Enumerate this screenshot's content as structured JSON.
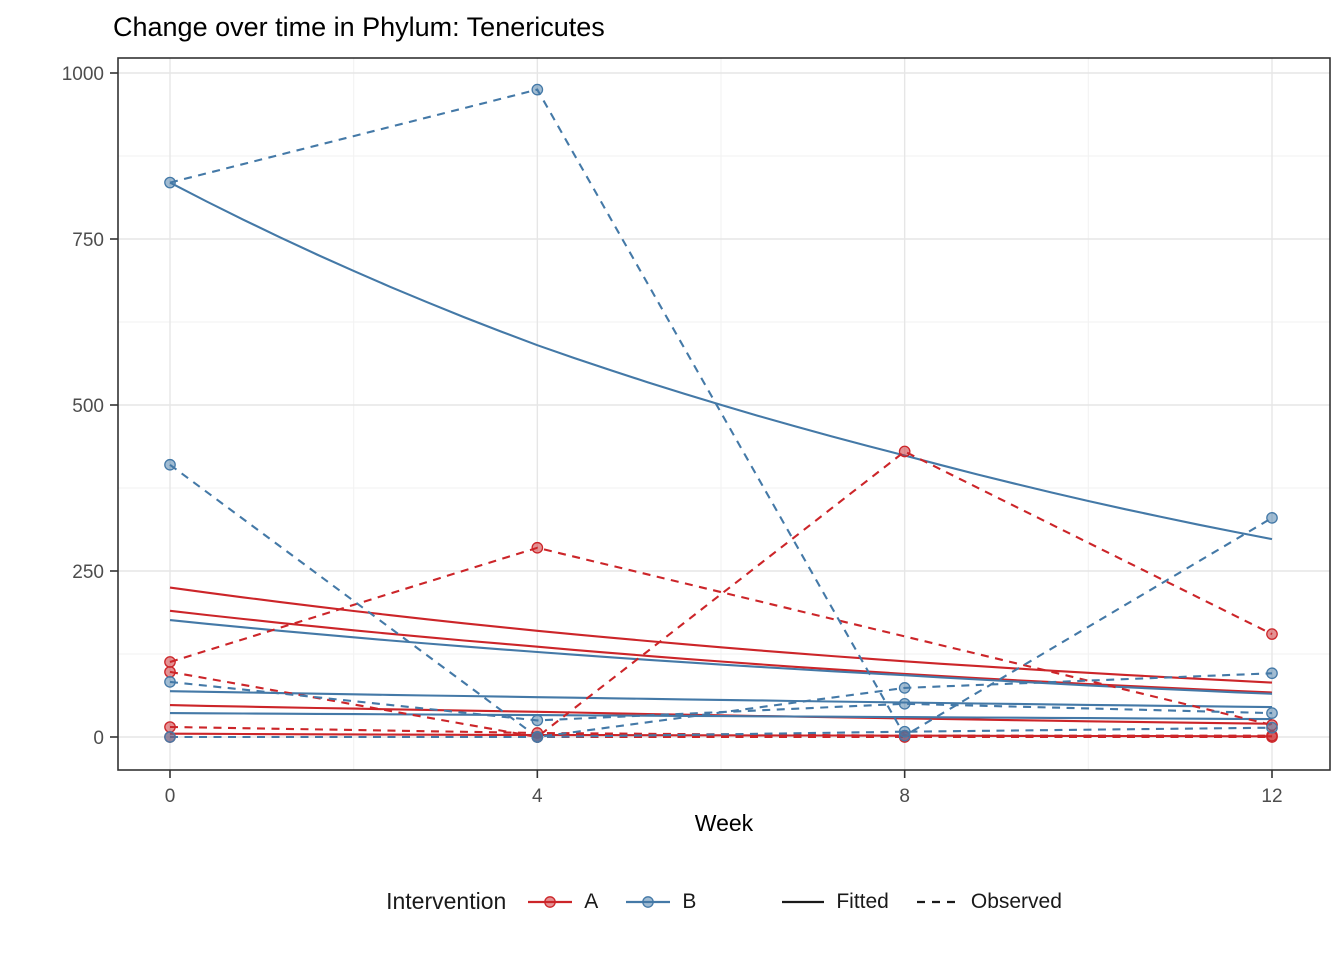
{
  "chart_data": {
    "type": "line",
    "title": "Change over time in Phylum: Tenericutes",
    "xlabel": "Week",
    "ylabel": "",
    "x": [
      0,
      4,
      8,
      12
    ],
    "xticks": [
      0,
      4,
      8,
      12
    ],
    "xticks_minor": [
      2,
      6,
      10
    ],
    "yticks": [
      0,
      250,
      500,
      750,
      1000
    ],
    "yticks_minor": [
      125,
      375,
      625,
      875
    ],
    "xlim": [
      -0.57,
      12.63
    ],
    "ylim": [
      -50,
      1023
    ],
    "grid": "on",
    "legend_position": "bottom",
    "legend": {
      "title": "Intervention",
      "groups": [
        {
          "label": "A",
          "color": "#CC2529"
        },
        {
          "label": "B",
          "color": "#4479A7"
        }
      ],
      "linetypes": [
        {
          "label": "Fitted",
          "dash": "solid"
        },
        {
          "label": "Observed",
          "dash": "dashed"
        }
      ],
      "key_color": "#1a1a1a"
    },
    "series": [
      {
        "id": "A1",
        "group": "A",
        "observed": [
          113,
          285,
          null,
          18
        ],
        "fitted": [
          225,
          160,
          114,
          82
        ]
      },
      {
        "id": "A2",
        "group": "A",
        "observed": [
          98,
          0,
          430,
          155
        ],
        "fitted": [
          190,
          136,
          95,
          67
        ]
      },
      {
        "id": "A3",
        "group": "A",
        "observed": [
          15,
          6,
          2,
          2
        ],
        "fitted": [
          48,
          38,
          28,
          20
        ]
      },
      {
        "id": "A4",
        "group": "A",
        "observed": [
          0,
          0,
          0,
          0
        ],
        "fitted": [
          5,
          3,
          2,
          1
        ]
      },
      {
        "id": "B1",
        "group": "B",
        "observed": [
          835,
          975,
          2,
          330
        ],
        "fitted": [
          835,
          590,
          424,
          298
        ]
      },
      {
        "id": "B2",
        "group": "B",
        "observed": [
          410,
          0,
          74,
          96
        ],
        "fitted": [
          176,
          128,
          93,
          65
        ]
      },
      {
        "id": "B3",
        "group": "B",
        "observed": [
          83,
          25,
          50,
          36
        ],
        "fitted": [
          69,
          60,
          52,
          45
        ]
      },
      {
        "id": "B4",
        "group": "B",
        "observed": [
          0,
          0,
          8,
          14
        ],
        "fitted": [
          36,
          33,
          30,
          27
        ]
      }
    ],
    "style": {
      "panel_border": "#333333",
      "grid_major": "#E6E6E6",
      "grid_minor": "#F2F2F2",
      "tick_color": "#333333",
      "tick_label_color": "#4D4D4D",
      "point_fill_opacity": 0.5
    }
  }
}
